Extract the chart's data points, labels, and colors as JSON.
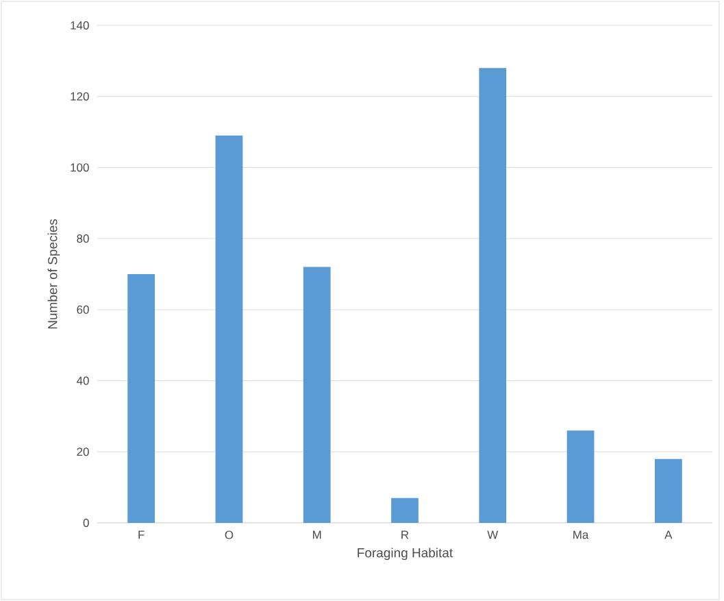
{
  "chart_data": {
    "type": "bar",
    "xlabel": "Foraging Habitat",
    "ylabel": "Number of Species",
    "categories": [
      "F",
      "O",
      "M",
      "R",
      "W",
      "Ma",
      "A"
    ],
    "values": [
      70,
      109,
      72,
      7,
      128,
      26,
      18
    ],
    "color": "#5b9bd5",
    "ylim": [
      0,
      140
    ],
    "yticks": [
      0,
      20,
      40,
      60,
      80,
      100,
      120,
      140
    ],
    "grid": "y"
  }
}
